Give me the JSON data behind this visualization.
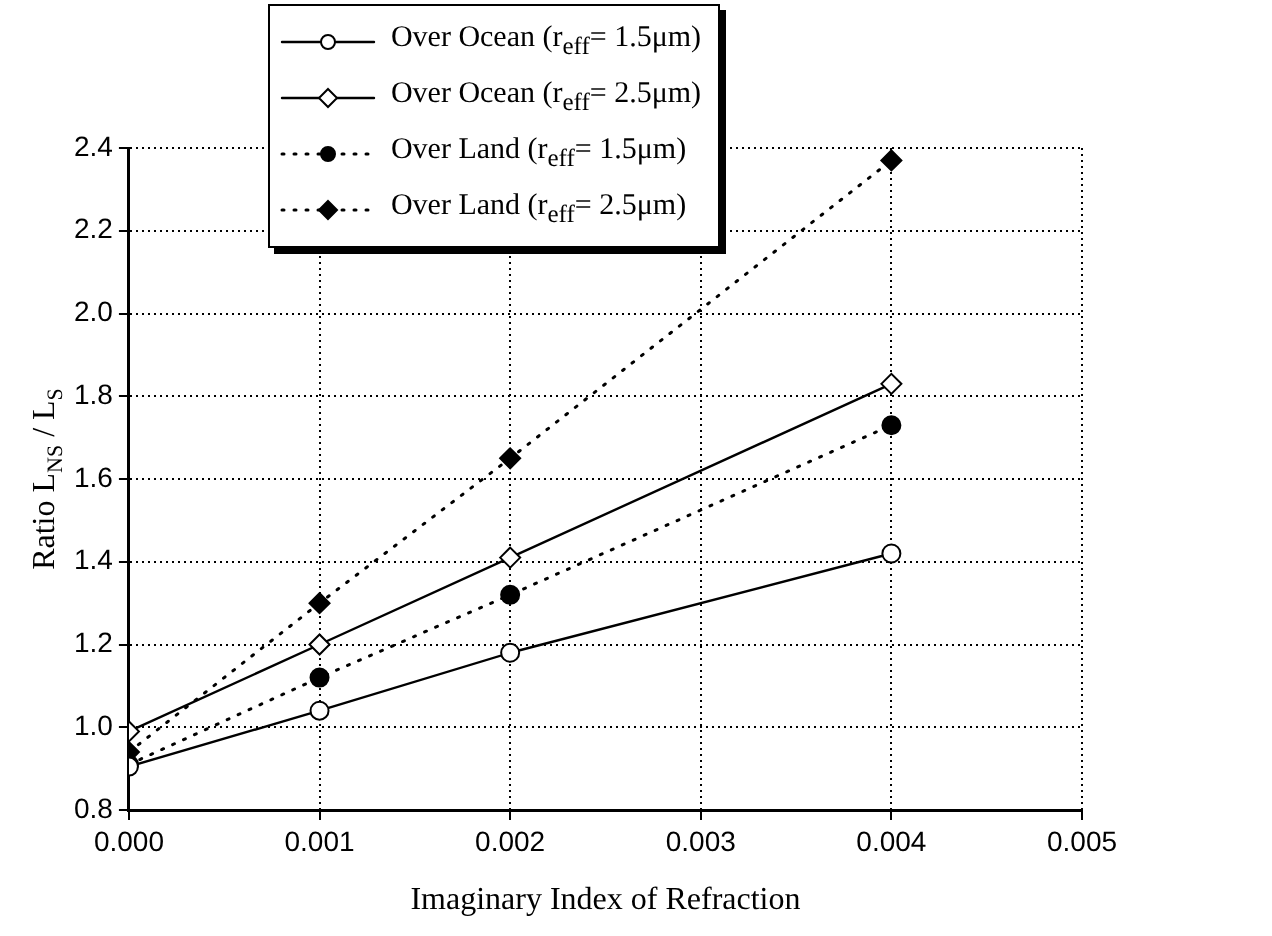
{
  "chart_data": {
    "type": "line",
    "xlabel": "Imaginary Index of Refraction",
    "ylabel": "Ratio L$_{NS}$ / L$_{S}$",
    "x": [
      0,
      0.001,
      0.002,
      0.004
    ],
    "series": [
      {
        "name": "Over Ocean (r$_{eff}$= 1.5μm)",
        "color": "#000000",
        "marker": "circle",
        "line_style": "solid",
        "values": [
          0.905,
          1.04,
          1.18,
          1.42
        ]
      },
      {
        "name": "Over Ocean (r$_{eff}$= 2.5μm)",
        "color": "#000000",
        "marker": "diamond",
        "line_style": "solid",
        "values": [
          0.99,
          1.2,
          1.41,
          1.83
        ]
      },
      {
        "name": "Over Land (r$_{eff}$= 1.5μm)",
        "color": "#000000",
        "marker": "circle",
        "line_style": "dotted",
        "values": [
          0.91,
          1.12,
          1.32,
          1.73
        ]
      },
      {
        "name": "Over Land (r$_{eff}$= 2.5μm)",
        "color": "#000000",
        "marker": "diamond",
        "line_style": "dotted",
        "values": [
          0.94,
          1.3,
          1.65,
          2.37
        ]
      }
    ],
    "xlim": [
      0,
      0.005
    ],
    "xticks": [
      {
        "value": 0,
        "label": "0.000"
      },
      {
        "value": 0.001,
        "label": "0.001"
      },
      {
        "value": 0.002,
        "label": "0.002"
      },
      {
        "value": 0.003,
        "label": "0.003"
      },
      {
        "value": 0.004,
        "label": "0.004"
      },
      {
        "value": 0.005,
        "label": "0.005"
      }
    ],
    "ylim": [
      0.8,
      2.4
    ],
    "yticks": [
      0.8,
      {
        "value": 1,
        "label": "1.0"
      },
      1.2,
      1.4,
      1.6,
      1.8,
      {
        "value": 2,
        "label": "2.0"
      },
      2.2,
      2.4
    ],
    "grid": true,
    "legend": "top left"
  }
}
